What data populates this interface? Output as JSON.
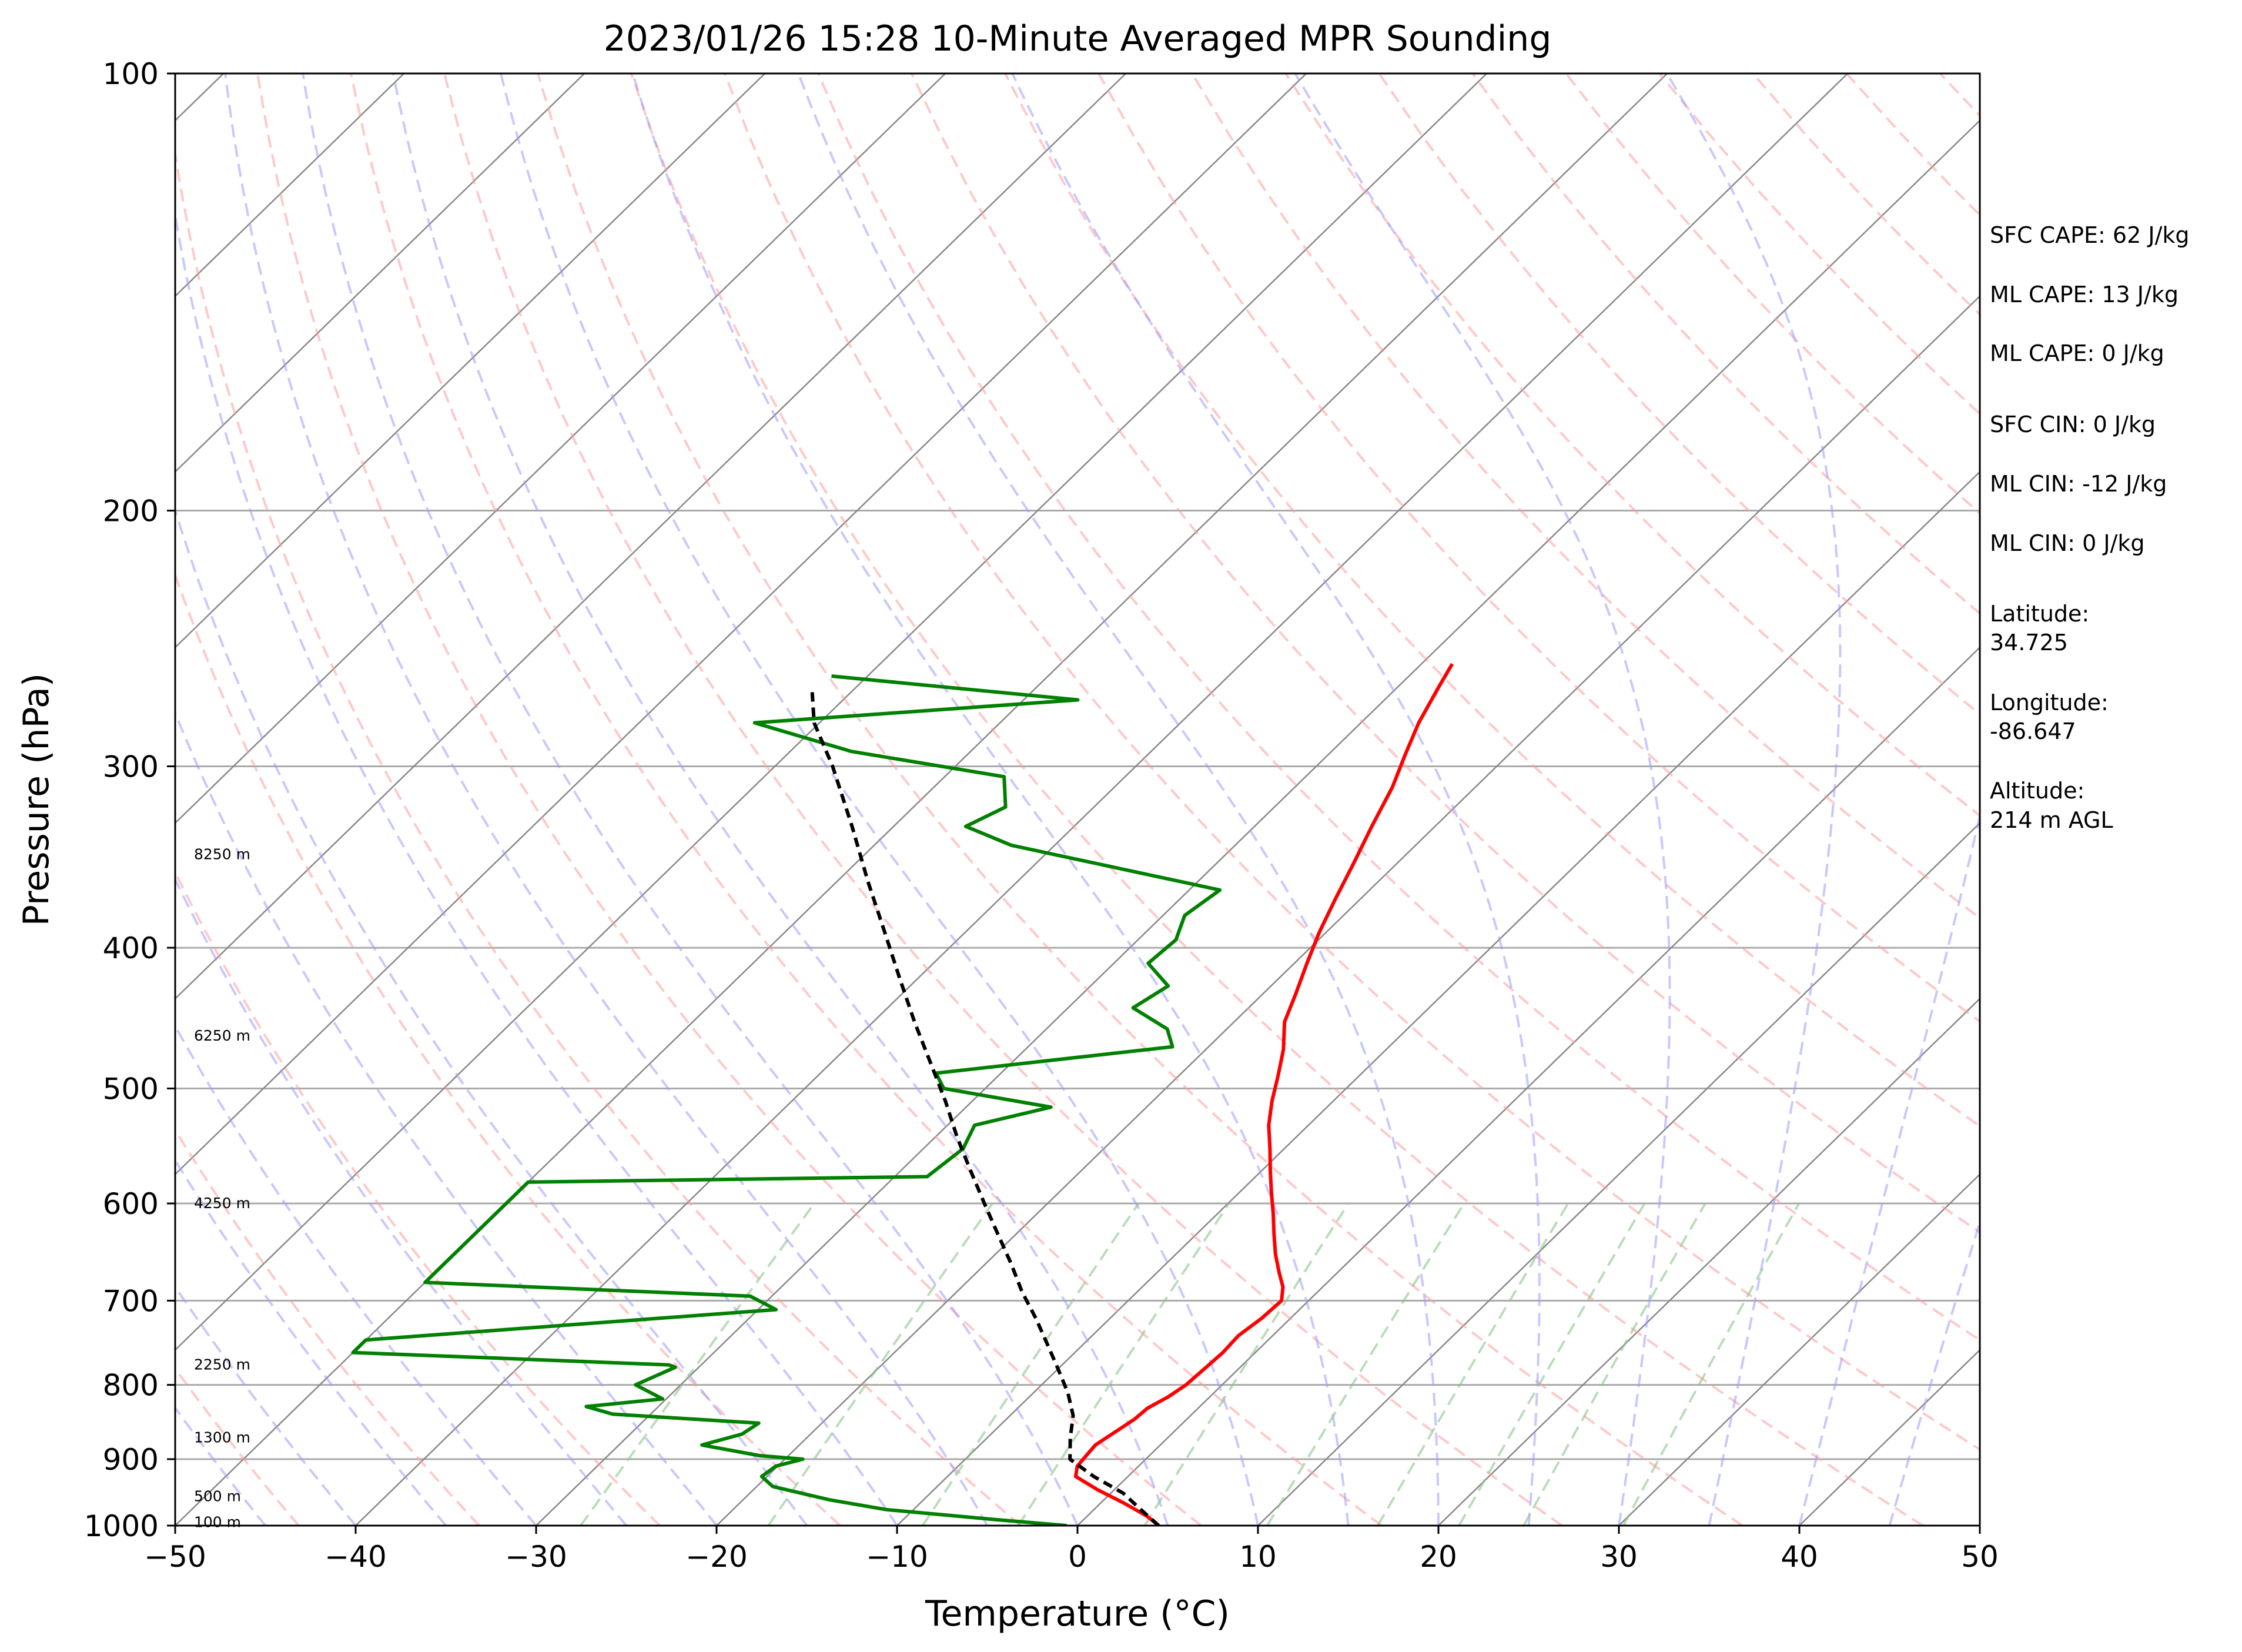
{
  "chart_data": {
    "type": "line",
    "title": "2023/01/26 15:28 10-Minute Averaged MPR Sounding",
    "xlabel": "Temperature (°C)",
    "ylabel": "Pressure (hPa)",
    "xlim": [
      -50,
      50
    ],
    "ylim": [
      1000,
      100
    ],
    "y_scale": "log",
    "skew": "skew-T log-p",
    "x_ticks": [
      "−50",
      "−40",
      "−30",
      "−20",
      "−10",
      "0",
      "10",
      "20",
      "30",
      "40",
      "50"
    ],
    "y_ticks": [
      "100",
      "200",
      "300",
      "400",
      "500",
      "600",
      "700",
      "800",
      "900",
      "1000"
    ],
    "grid": true,
    "colors": {
      "temperature": "#ff0000",
      "dewpoint": "#008000",
      "parcel": "#000000",
      "dry_adiabats": "#ff9a9a",
      "moist_adiabats": "#9a9aff",
      "mixing_ratio": "#8cc48c",
      "isotherms": "#888888",
      "isobars": "#aaaaaa"
    },
    "series": [
      {
        "style": "solid",
        "color": "#ff0000",
        "p": [
          1000,
          985,
          965,
          945,
          925,
          910,
          895,
          880,
          865,
          845,
          830,
          815,
          800,
          780,
          760,
          740,
          720,
          700,
          685,
          670,
          650,
          630,
          610,
          590,
          570,
          550,
          530,
          510,
          490,
          470,
          450,
          430,
          410,
          390,
          370,
          350,
          330,
          310,
          295,
          280,
          265,
          255
        ],
        "t": [
          4.5,
          3.3,
          1.3,
          -0.9,
          -2.9,
          -3.4,
          -3.5,
          -3.6,
          -3.3,
          -2.9,
          -2.8,
          -2.3,
          -2.0,
          -1.9,
          -1.8,
          -1.9,
          -1.6,
          -1.5,
          -2.2,
          -3.2,
          -4.5,
          -5.7,
          -6.9,
          -8.2,
          -9.5,
          -10.8,
          -12.2,
          -13.4,
          -14.5,
          -15.7,
          -17.2,
          -18.2,
          -19.3,
          -20.4,
          -21.4,
          -22.4,
          -23.5,
          -24.6,
          -25.7,
          -26.8,
          -27.7,
          -28.3
        ]
      },
      {
        "style": "solid",
        "color": "#008000",
        "p": [
          1000,
          990,
          975,
          960,
          940,
          925,
          910,
          900,
          895,
          880,
          865,
          850,
          838,
          828,
          818,
          800,
          778,
          775,
          760,
          745,
          710,
          695,
          680,
          580,
          575,
          550,
          530,
          515,
          500,
          488,
          468,
          455,
          440,
          425,
          410,
          395,
          380,
          365,
          340,
          330,
          320,
          305,
          293,
          280,
          270,
          260
        ],
        "t": [
          -0.6,
          -5.1,
          -11.5,
          -15.2,
          -19.1,
          -20.3,
          -20.1,
          -19.0,
          -21.6,
          -25.4,
          -23.8,
          -23.5,
          -32.1,
          -34.0,
          -30.2,
          -32.5,
          -31.3,
          -31.8,
          -50.0,
          -50.0,
          -29.0,
          -31.2,
          -50.0,
          -50.0,
          -28.2,
          -27.8,
          -28.5,
          -25.3,
          -32.3,
          -33.6,
          -22.0,
          -23.3,
          -26.4,
          -25.7,
          -28.1,
          -27.9,
          -28.8,
          -28.3,
          -42.4,
          -46.0,
          -44.9,
          -46.7,
          -56.6,
          -63.6,
          -47.0,
          -62.0
        ]
      },
      {
        "style": "dashed",
        "color": "#000000",
        "p": [
          1000,
          975,
          950,
          925,
          900,
          870,
          840,
          810,
          780,
          750,
          720,
          690,
          660,
          630,
          600,
          570,
          540,
          510,
          480,
          450,
          420,
          390,
          360,
          330,
          300,
          280,
          265
        ],
        "t": [
          4.5,
          2.6,
          0.7,
          -1.9,
          -4.2,
          -5.4,
          -6.5,
          -8.1,
          -10.0,
          -12.0,
          -14.1,
          -16.4,
          -18.6,
          -21.0,
          -23.5,
          -26.1,
          -28.8,
          -31.5,
          -34.5,
          -37.7,
          -41.0,
          -44.5,
          -48.3,
          -52.3,
          -56.8,
          -60.3,
          -62.4
        ]
      }
    ]
  },
  "indices": {
    "sfc_cape": "SFC CAPE: 62 J/kg",
    "ml_cape_1": "ML CAPE: 13 J/kg",
    "ml_cape_2": "ML CAPE: 0 J/kg",
    "sfc_cin": "SFC CIN: 0 J/kg",
    "ml_cin_1": "ML CIN: -12 J/kg",
    "ml_cin_2": "ML CIN: 0 J/kg"
  },
  "location": {
    "lat_label": "Latitude:",
    "lat_value": "34.725",
    "lon_label": "Longitude:",
    "lon_value": "-86.647",
    "alt_label": "Altitude:",
    "alt_value": "214 m AGL"
  },
  "height_labels": [
    {
      "text": "8250 m",
      "p": 345
    },
    {
      "text": "6250 m",
      "p": 460
    },
    {
      "text": "4250 m",
      "p": 600
    },
    {
      "text": "2250 m",
      "p": 775
    },
    {
      "text": "1300 m",
      "p": 870
    },
    {
      "text": "500 m",
      "p": 955
    },
    {
      "text": "100 m",
      "p": 995
    }
  ]
}
